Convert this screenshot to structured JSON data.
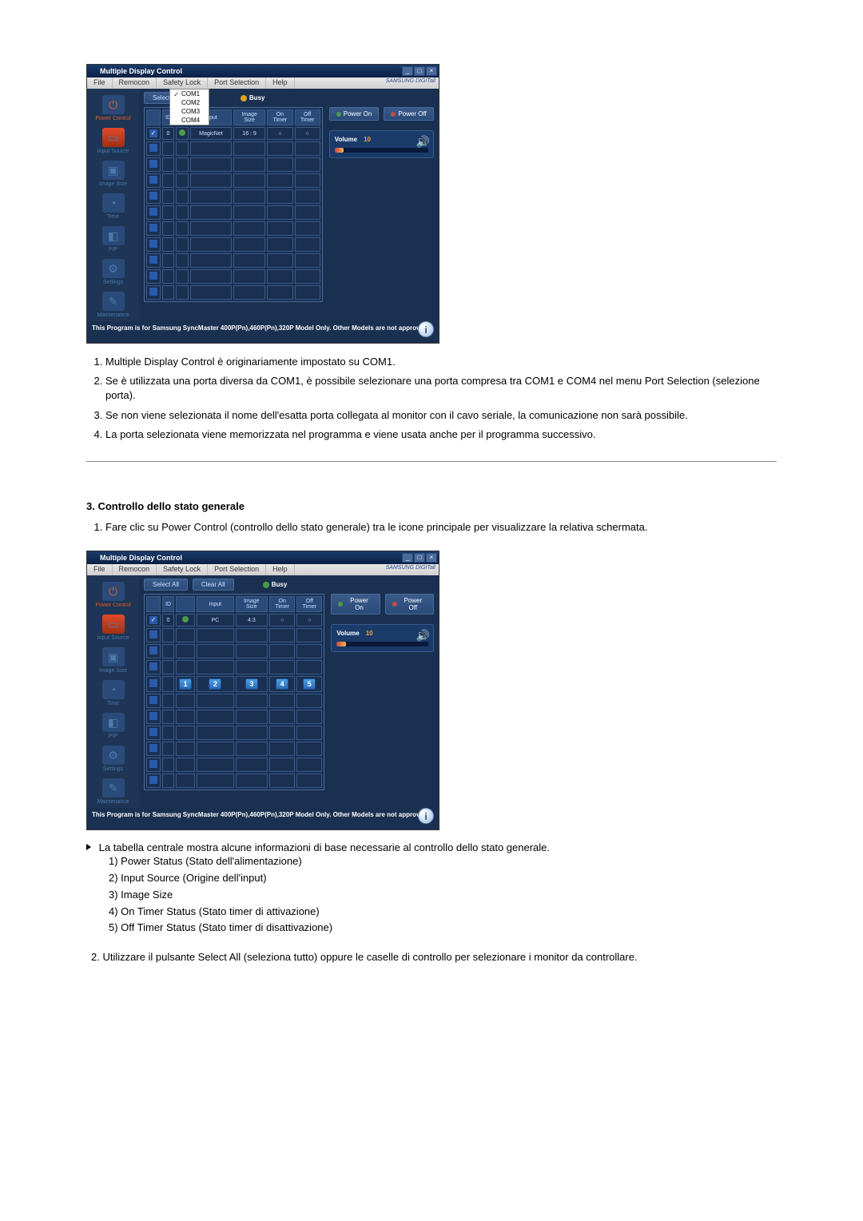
{
  "colors": {
    "page_bg": "#ffffff",
    "window_bg": "#1a3050",
    "titlebar_start": "#1a3a6a",
    "titlebar_end": "#0a2045",
    "menubar_bg": "#d8d8d8",
    "sidebar_bg": "#1e3555",
    "sidebar_text": "#4a7aaa",
    "sidebar_active": "#e05a2a",
    "grid_border": "#3a5a8a",
    "btn_bg": "#2a4a7a",
    "accent_orange": "#ffa030",
    "power_on": "#4a9a4a",
    "power_off": "#c04a4a"
  },
  "screenshot1": {
    "title": "Multiple Display Control",
    "menus": [
      "File",
      "Remocon",
      "Safety Lock",
      "Port Selection",
      "Help"
    ],
    "brand": "SAMSUNG DIGITall",
    "port_menu": {
      "items": [
        "COM1",
        "COM2",
        "COM3",
        "COM4"
      ],
      "selected_index": 0
    },
    "sidebar": [
      {
        "label": "Power Control",
        "active": true,
        "glyph": "⏻"
      },
      {
        "label": "Input Source",
        "active": false,
        "glyph": "▭"
      },
      {
        "label": "Image Size",
        "active": false,
        "glyph": "▣"
      },
      {
        "label": "Time",
        "active": false,
        "glyph": "◔"
      },
      {
        "label": "PIP",
        "active": false,
        "glyph": "◧"
      },
      {
        "label": "Settings",
        "active": false,
        "glyph": "⚙"
      },
      {
        "label": "Maintenance",
        "active": false,
        "glyph": "✎"
      }
    ],
    "select_all_btn": "Select All",
    "busy_label": "Busy",
    "busy_color": "orange",
    "table": {
      "headers": [
        "",
        "ID",
        "",
        "Input",
        "Image Size",
        "On Timer",
        "Off Timer"
      ],
      "rows": [
        {
          "checked": true,
          "id": "0",
          "status": "green",
          "input": "MagicNet",
          "size": "16 : 9",
          "on": "○",
          "off": "○"
        }
      ],
      "empty_rows": 10
    },
    "power_on": "Power On",
    "power_off": "Power Off",
    "volume_label": "Volume",
    "volume_value": "10",
    "volume_percent": 10,
    "footer": "This Program is for Samsung SyncMaster 400P(Pn),460P(Pn),320P  Model Only. Other Models are not approved."
  },
  "list1": {
    "items": [
      "Multiple Display Control è originariamente impostato su COM1.",
      "Se è utilizzata una porta diversa da COM1, è possibile selezionare una porta compresa tra COM1 e COM4 nel menu Port Selection (selezione porta).",
      "Se non viene selezionata il nome dell'esatta porta collegata al monitor con il cavo seriale, la comunicazione non sarà possibile.",
      "La porta selezionata viene memorizzata nel programma e viene usata anche per il programma successivo."
    ]
  },
  "section3": {
    "heading": "3. Controllo dello stato generale",
    "intro_num": "1.",
    "intro": "Fare clic su Power Control (controllo dello stato generale) tra le icone principale per visualizzare la relativa schermata."
  },
  "screenshot2": {
    "title": "Multiple Display Control",
    "menus": [
      "File",
      "Remocon",
      "Safety Lock",
      "Port Selection",
      "Help"
    ],
    "brand": "SAMSUNG DIGITall",
    "sidebar": [
      {
        "label": "Power Control",
        "active": true,
        "glyph": "⏻"
      },
      {
        "label": "Input Source",
        "active": false,
        "glyph": "▭"
      },
      {
        "label": "Image Size",
        "active": false,
        "glyph": "▣"
      },
      {
        "label": "Time",
        "active": false,
        "glyph": "◔"
      },
      {
        "label": "PIP",
        "active": false,
        "glyph": "◧"
      },
      {
        "label": "Settings",
        "active": false,
        "glyph": "⚙"
      },
      {
        "label": "Maintenance",
        "active": false,
        "glyph": "✎"
      }
    ],
    "select_all_btn": "Select All",
    "clear_all_btn": "Clear All",
    "busy_label": "Busy",
    "busy_color": "green",
    "table": {
      "headers": [
        "",
        "ID",
        "",
        "Input",
        "Image Size",
        "On Timer",
        "Off Timer"
      ],
      "rows": [
        {
          "checked": true,
          "id": "0",
          "status": "green",
          "input": "PC",
          "size": "4:3",
          "on": "○",
          "off": "○"
        }
      ],
      "empty_rows": 10,
      "badges": [
        "1",
        "2",
        "3",
        "4",
        "5"
      ],
      "badge_row_index": 4
    },
    "power_on": "Power On",
    "power_off": "Power Off",
    "volume_label": "Volume",
    "volume_value": "10",
    "volume_percent": 10,
    "footer": "This Program is for Samsung SyncMaster 400P(Pn),460P(Pn),320P  Model Only. Other Models are not approved."
  },
  "bullet_line": "La tabella centrale mostra alcune informazioni di base necessarie al controllo dello stato generale.",
  "sub_items": [
    "1) Power Status (Stato dell'alimentazione)",
    "2) Input Source (Origine dell'input)",
    "3) Image Size",
    "4) On Timer Status (Stato timer di attivazione)",
    "5) Off Timer Status (Stato timer di disattivazione)"
  ],
  "list2": {
    "num": "2.",
    "text": "Utilizzare il pulsante Select All (seleziona tutto) oppure le caselle di controllo per selezionare i monitor da controllare."
  }
}
